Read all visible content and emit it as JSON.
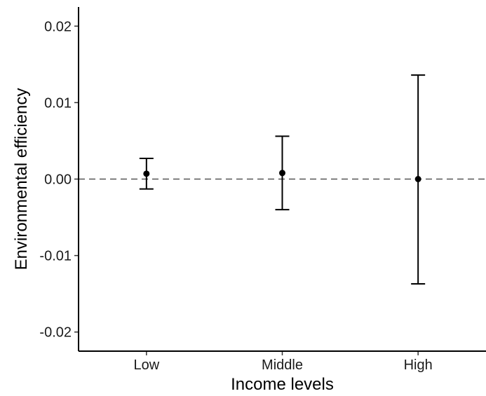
{
  "chart_data": {
    "type": "scatter",
    "xlabel": "Income levels",
    "ylabel": "Environmental efficiency",
    "categories": [
      "Low",
      "Middle",
      "High"
    ],
    "points": [
      {
        "category": "Low",
        "estimate": 0.0007,
        "lower": -0.0013,
        "upper": 0.0027
      },
      {
        "category": "Middle",
        "estimate": 0.0008,
        "lower": -0.004,
        "upper": 0.0056
      },
      {
        "category": "High",
        "estimate": 0.0,
        "lower": -0.0137,
        "upper": 0.0136
      }
    ],
    "ylim": [
      -0.0225,
      0.0225
    ],
    "yticks": [
      -0.02,
      -0.01,
      0.0,
      0.01,
      0.02
    ],
    "ytick_labels": [
      "-0.02",
      "-0.01",
      "0.00",
      "0.01",
      "0.02"
    ],
    "reference_line": {
      "y": 0.0,
      "style": "dashed"
    },
    "grid": false,
    "legend": "none",
    "colors": {
      "marks": "#000000",
      "reference_line": "#555555"
    }
  }
}
